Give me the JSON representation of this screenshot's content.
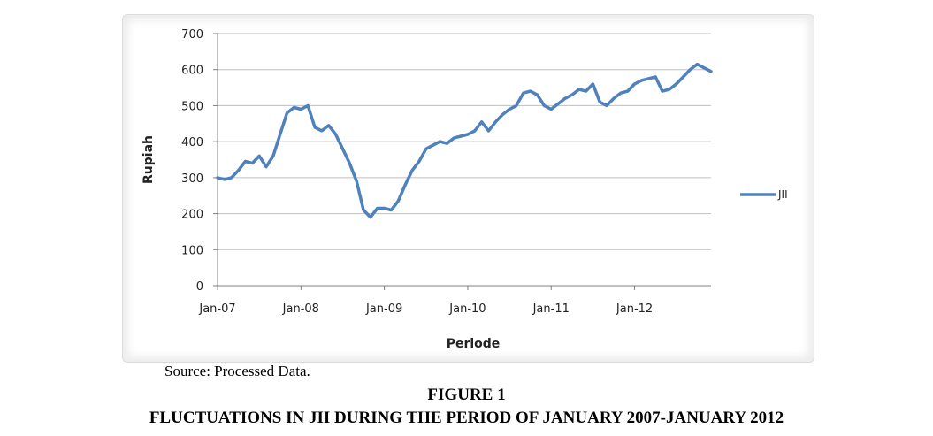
{
  "source_note": "Source: Processed Data.",
  "figure_label": "FIGURE 1",
  "figure_caption": "FLUCTUATIONS IN JII DURING THE PERIOD OF JANUARY 2007-JANUARY 2012",
  "colors": {
    "series": "#4f81bd",
    "grid": "#bfbfbf",
    "axis": "#808080"
  },
  "chart_data": {
    "type": "line",
    "xlabel": "Periode",
    "ylabel": "Rupiah",
    "ylim": [
      0,
      700
    ],
    "yticks": [
      0,
      100,
      200,
      300,
      400,
      500,
      600,
      700
    ],
    "xlim": [
      "2007-01",
      "2012-12"
    ],
    "xticks": [
      "Jan-07",
      "Jan-08",
      "Jan-09",
      "Jan-10",
      "Jan-11",
      "Jan-12"
    ],
    "grid": true,
    "legend": "right",
    "series": [
      {
        "name": "JII",
        "color": "#4f81bd",
        "points": [
          [
            "2007-01",
            300
          ],
          [
            "2007-02",
            295
          ],
          [
            "2007-03",
            300
          ],
          [
            "2007-04",
            320
          ],
          [
            "2007-05",
            345
          ],
          [
            "2007-06",
            340
          ],
          [
            "2007-07",
            360
          ],
          [
            "2007-08",
            330
          ],
          [
            "2007-09",
            360
          ],
          [
            "2007-10",
            420
          ],
          [
            "2007-11",
            480
          ],
          [
            "2007-12",
            495
          ],
          [
            "2008-01",
            490
          ],
          [
            "2008-02",
            500
          ],
          [
            "2008-03",
            440
          ],
          [
            "2008-04",
            430
          ],
          [
            "2008-05",
            445
          ],
          [
            "2008-06",
            420
          ],
          [
            "2008-07",
            380
          ],
          [
            "2008-08",
            340
          ],
          [
            "2008-09",
            290
          ],
          [
            "2008-10",
            210
          ],
          [
            "2008-11",
            190
          ],
          [
            "2008-12",
            215
          ],
          [
            "2009-01",
            215
          ],
          [
            "2009-02",
            210
          ],
          [
            "2009-03",
            235
          ],
          [
            "2009-04",
            280
          ],
          [
            "2009-05",
            320
          ],
          [
            "2009-06",
            345
          ],
          [
            "2009-07",
            380
          ],
          [
            "2009-08",
            390
          ],
          [
            "2009-09",
            400
          ],
          [
            "2009-10",
            395
          ],
          [
            "2009-11",
            410
          ],
          [
            "2009-12",
            415
          ],
          [
            "2010-01",
            420
          ],
          [
            "2010-02",
            430
          ],
          [
            "2010-03",
            455
          ],
          [
            "2010-04",
            430
          ],
          [
            "2010-05",
            455
          ],
          [
            "2010-06",
            475
          ],
          [
            "2010-07",
            490
          ],
          [
            "2010-08",
            500
          ],
          [
            "2010-09",
            535
          ],
          [
            "2010-10",
            540
          ],
          [
            "2010-11",
            530
          ],
          [
            "2010-12",
            500
          ],
          [
            "2011-01",
            490
          ],
          [
            "2011-02",
            505
          ],
          [
            "2011-03",
            520
          ],
          [
            "2011-04",
            530
          ],
          [
            "2011-05",
            545
          ],
          [
            "2011-06",
            540
          ],
          [
            "2011-07",
            560
          ],
          [
            "2011-08",
            510
          ],
          [
            "2011-09",
            500
          ],
          [
            "2011-10",
            520
          ],
          [
            "2011-11",
            535
          ],
          [
            "2011-12",
            540
          ],
          [
            "2012-01",
            560
          ],
          [
            "2012-02",
            570
          ],
          [
            "2012-03",
            575
          ],
          [
            "2012-04",
            580
          ],
          [
            "2012-05",
            540
          ],
          [
            "2012-06",
            545
          ],
          [
            "2012-07",
            560
          ],
          [
            "2012-08",
            580
          ],
          [
            "2012-09",
            600
          ],
          [
            "2012-10",
            615
          ],
          [
            "2012-11",
            605
          ],
          [
            "2012-12",
            595
          ]
        ]
      }
    ]
  }
}
